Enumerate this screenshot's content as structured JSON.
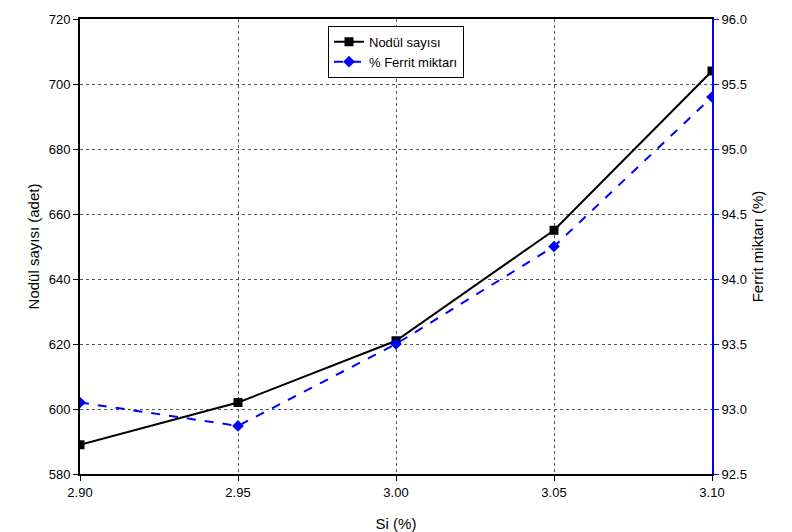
{
  "chart_data": {
    "type": "line",
    "x_label": "Si (%)",
    "y_label": "Nodül sayısı (adet)",
    "y2_label": "Ferrit miktarı (%)",
    "x": [
      2.9,
      2.95,
      3.0,
      3.05,
      3.1
    ],
    "series": [
      {
        "name": "Nodül sayısı",
        "color": "#000000",
        "marker": "square",
        "line_style": "solid",
        "values": [
          589,
          602,
          621,
          655,
          704
        ]
      },
      {
        "name": "% Ferrit miktarı",
        "color": "#0000ff",
        "marker": "diamond",
        "line_style": "dashed",
        "axis": "y2",
        "values": [
          93.05,
          92.87,
          93.5,
          94.25,
          95.4
        ]
      }
    ],
    "xlim": [
      2.9,
      3.1
    ],
    "xticks": [
      {
        "value": 2.9,
        "label": "2.90"
      },
      {
        "value": 2.95,
        "label": "2.95"
      },
      {
        "value": 3.0,
        "label": "3.00"
      },
      {
        "value": 3.05,
        "label": "3.05"
      },
      {
        "value": 3.1,
        "label": "3.10"
      }
    ],
    "ylim": [
      580,
      720
    ],
    "yticks": [
      580,
      600,
      620,
      640,
      660,
      680,
      700,
      720
    ],
    "y2lim": [
      92.5,
      96.0
    ],
    "y2ticks": [
      92.5,
      {
        "value": 93.0,
        "label": "93.0"
      },
      93.5,
      {
        "value": 94.0,
        "label": "94.0"
      },
      94.5,
      {
        "value": 95.0,
        "label": "95.0"
      },
      95.5,
      {
        "value": 96.0,
        "label": "96.0"
      }
    ],
    "grid": true,
    "legend": "top"
  }
}
